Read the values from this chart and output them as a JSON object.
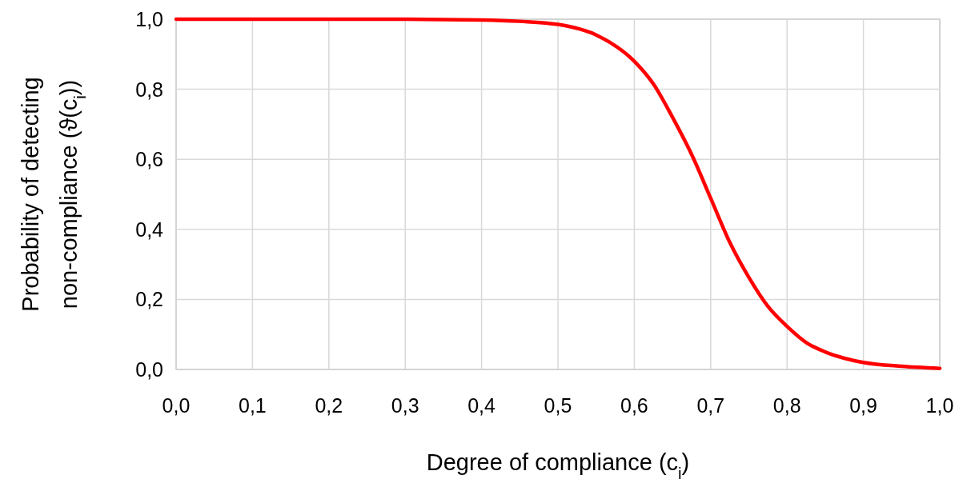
{
  "chart_data": {
    "type": "line",
    "xlabel": "Degree of compliance (c$_{i}$)",
    "ylabel": "Probability of detecting\nnon-compliance (ϑ(c$_{i}$))",
    "x": [
      0,
      0.1,
      0.2,
      0.3,
      0.4,
      0.45,
      0.5,
      0.55,
      0.6,
      0.625,
      0.65,
      0.675,
      0.7,
      0.725,
      0.75,
      0.775,
      0.8,
      0.825,
      0.85,
      0.875,
      0.9,
      0.95,
      1.0
    ],
    "series": [
      {
        "color": "#ff0000",
        "values": [
          1.0,
          1.0,
          1.0,
          1.0,
          0.998,
          0.994,
          0.985,
          0.955,
          0.88,
          0.815,
          0.72,
          0.614,
          0.489,
          0.363,
          0.263,
          0.18,
          0.123,
          0.077,
          0.05,
          0.032,
          0.02,
          0.009,
          0.003
        ]
      }
    ],
    "xlim": [
      0,
      1
    ],
    "ylim": [
      0,
      1
    ],
    "xticks": [
      {
        "value": 0,
        "label": "0,0"
      },
      {
        "value": 0.1,
        "label": "0,1"
      },
      {
        "value": 0.2,
        "label": "0,2"
      },
      {
        "value": 0.3,
        "label": "0,3"
      },
      {
        "value": 0.4,
        "label": "0,4"
      },
      {
        "value": 0.5,
        "label": "0,5"
      },
      {
        "value": 0.6,
        "label": "0,6"
      },
      {
        "value": 0.7,
        "label": "0,7"
      },
      {
        "value": 0.8,
        "label": "0,8"
      },
      {
        "value": 0.9,
        "label": "0,9"
      },
      {
        "value": 1,
        "label": "1,0"
      }
    ],
    "yticks": [
      {
        "value": 0,
        "label": "0,0"
      },
      {
        "value": 0.2,
        "label": "0,2"
      },
      {
        "value": 0.4,
        "label": "0,4"
      },
      {
        "value": 0.6,
        "label": "0,6"
      },
      {
        "value": 0.8,
        "label": "0,8"
      },
      {
        "value": 1,
        "label": "1,0"
      }
    ],
    "grid": true,
    "marker": "none",
    "line_style": "solid"
  }
}
